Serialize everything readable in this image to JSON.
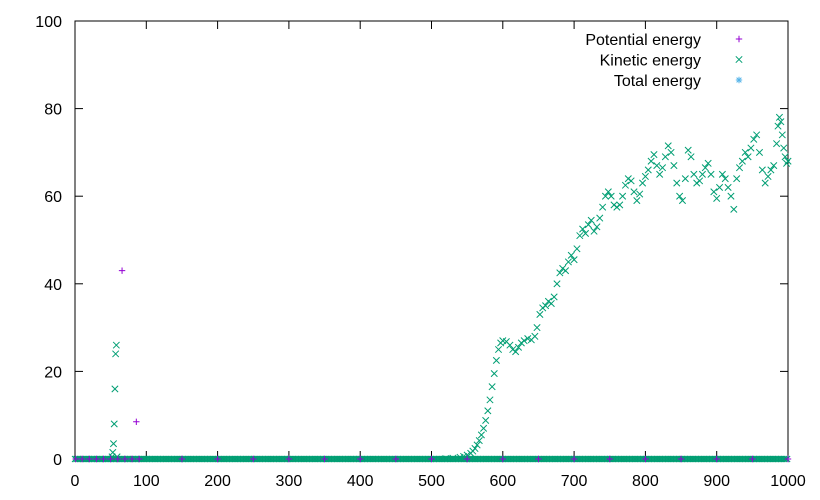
{
  "chart_data": {
    "type": "scatter",
    "xlim": [
      0,
      1000
    ],
    "ylim": [
      0,
      100
    ],
    "x_ticks": [
      0,
      100,
      200,
      300,
      400,
      500,
      600,
      700,
      800,
      900,
      1000
    ],
    "y_ticks": [
      0,
      20,
      40,
      60,
      80,
      100
    ],
    "grid": false,
    "legend_position": "top-right",
    "series": [
      {
        "name": "Potential energy",
        "marker": "plus",
        "color": "#9400d3",
        "points": [
          [
            1,
            0
          ],
          [
            10,
            0
          ],
          [
            20,
            0
          ],
          [
            30,
            0
          ],
          [
            40,
            0
          ],
          [
            50,
            0
          ],
          [
            60,
            0
          ],
          [
            66,
            43
          ],
          [
            70,
            0
          ],
          [
            80,
            0
          ],
          [
            86,
            8.5
          ],
          [
            90,
            0
          ],
          [
            150,
            0
          ],
          [
            200,
            0
          ],
          [
            250,
            0
          ],
          [
            300,
            0
          ],
          [
            350,
            0
          ],
          [
            400,
            0
          ],
          [
            450,
            0
          ],
          [
            500,
            0
          ],
          [
            550,
            0
          ],
          [
            600,
            0
          ],
          [
            650,
            0
          ],
          [
            700,
            0
          ],
          [
            750,
            0
          ],
          [
            800,
            0
          ],
          [
            850,
            0
          ],
          [
            900,
            0
          ],
          [
            950,
            0
          ],
          [
            1000,
            0
          ]
        ]
      },
      {
        "name": "Kinetic energy",
        "marker": "cross",
        "color": "#009e73",
        "points": [
          [
            52,
            0.5
          ],
          [
            53,
            1.5
          ],
          [
            54,
            3.5
          ],
          [
            55,
            8
          ],
          [
            56,
            16
          ],
          [
            57,
            24
          ],
          [
            58,
            26
          ],
          [
            59,
            0.5
          ],
          [
            520,
            0.1
          ],
          [
            530,
            0.2
          ],
          [
            540,
            0.4
          ],
          [
            545,
            0.6
          ],
          [
            550,
            0.9
          ],
          [
            555,
            1.3
          ],
          [
            558,
            1.8
          ],
          [
            561,
            2.4
          ],
          [
            564,
            3.2
          ],
          [
            567,
            4.2
          ],
          [
            570,
            5.5
          ],
          [
            573,
            7
          ],
          [
            576,
            8.8
          ],
          [
            579,
            11
          ],
          [
            582,
            13.5
          ],
          [
            585,
            16.5
          ],
          [
            588,
            19.5
          ],
          [
            591,
            22.5
          ],
          [
            594,
            25
          ],
          [
            597,
            26.5
          ],
          [
            600,
            27
          ],
          [
            605,
            26.8
          ],
          [
            610,
            26
          ],
          [
            614,
            25
          ],
          [
            618,
            24.5
          ],
          [
            622,
            25.5
          ],
          [
            626,
            26.5
          ],
          [
            630,
            27
          ],
          [
            635,
            27.5
          ],
          [
            640,
            27.2
          ],
          [
            645,
            28
          ],
          [
            648,
            30
          ],
          [
            652,
            33
          ],
          [
            656,
            34.5
          ],
          [
            660,
            35
          ],
          [
            664,
            36
          ],
          [
            668,
            35.5
          ],
          [
            672,
            37
          ],
          [
            676,
            40
          ],
          [
            680,
            42.5
          ],
          [
            684,
            43.5
          ],
          [
            688,
            43
          ],
          [
            692,
            45
          ],
          [
            696,
            46.5
          ],
          [
            700,
            45.5
          ],
          [
            704,
            48
          ],
          [
            708,
            51
          ],
          [
            712,
            52.5
          ],
          [
            716,
            51.5
          ],
          [
            720,
            53.5
          ],
          [
            724,
            54.5
          ],
          [
            728,
            52
          ],
          [
            732,
            53
          ],
          [
            736,
            55
          ],
          [
            740,
            57.5
          ],
          [
            744,
            60
          ],
          [
            748,
            61
          ],
          [
            752,
            60
          ],
          [
            756,
            58
          ],
          [
            760,
            57.5
          ],
          [
            764,
            58
          ],
          [
            768,
            60
          ],
          [
            772,
            62.5
          ],
          [
            776,
            64
          ],
          [
            780,
            63.5
          ],
          [
            784,
            61
          ],
          [
            788,
            59
          ],
          [
            792,
            60.5
          ],
          [
            796,
            63
          ],
          [
            800,
            64.5
          ],
          [
            804,
            66
          ],
          [
            808,
            68
          ],
          [
            812,
            69.5
          ],
          [
            816,
            67
          ],
          [
            820,
            65
          ],
          [
            824,
            66.5
          ],
          [
            828,
            69
          ],
          [
            832,
            71.5
          ],
          [
            836,
            70
          ],
          [
            840,
            67
          ],
          [
            844,
            63
          ],
          [
            848,
            60
          ],
          [
            852,
            59
          ],
          [
            856,
            64
          ],
          [
            860,
            70.5
          ],
          [
            864,
            69
          ],
          [
            868,
            65
          ],
          [
            872,
            63
          ],
          [
            876,
            63.5
          ],
          [
            880,
            65
          ],
          [
            884,
            66.5
          ],
          [
            888,
            67.5
          ],
          [
            892,
            65
          ],
          [
            896,
            61
          ],
          [
            900,
            59.5
          ],
          [
            904,
            62
          ],
          [
            908,
            65
          ],
          [
            912,
            64
          ],
          [
            916,
            62
          ],
          [
            920,
            60
          ],
          [
            924,
            57
          ],
          [
            928,
            64
          ],
          [
            932,
            66.5
          ],
          [
            936,
            68
          ],
          [
            940,
            70
          ],
          [
            944,
            69
          ],
          [
            948,
            71
          ],
          [
            952,
            73
          ],
          [
            956,
            74
          ],
          [
            960,
            70
          ],
          [
            964,
            66
          ],
          [
            968,
            63
          ],
          [
            972,
            64.5
          ],
          [
            976,
            66
          ],
          [
            980,
            67
          ],
          [
            984,
            72
          ],
          [
            986,
            76
          ],
          [
            988,
            78
          ],
          [
            990,
            77
          ],
          [
            992,
            74
          ],
          [
            994,
            71
          ],
          [
            996,
            69
          ],
          [
            998,
            67.5
          ],
          [
            1000,
            68
          ]
        ]
      },
      {
        "name": "Total energy",
        "marker": "star",
        "color": "#56b4e9",
        "points": []
      }
    ]
  }
}
